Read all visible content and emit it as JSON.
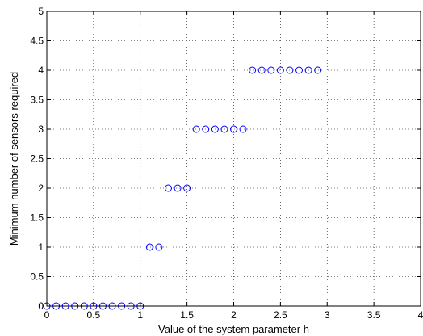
{
  "chart_data": {
    "type": "scatter",
    "title": "",
    "xlabel": "Value of the system parameter h",
    "ylabel": "Minimum number of sensors required",
    "xlim": [
      0,
      4
    ],
    "ylim": [
      0,
      5
    ],
    "x_ticks": [
      "0",
      "0.5",
      "1",
      "1.5",
      "2",
      "2.5",
      "3",
      "3.5",
      "4"
    ],
    "y_ticks": [
      "0",
      "0.5",
      "1",
      "1.5",
      "2",
      "2.5",
      "3",
      "3.5",
      "4",
      "4.5",
      "5"
    ],
    "grid": true,
    "grid_style": "dotted",
    "marker": "open-circle",
    "marker_color": "#0000ff",
    "series": [
      {
        "x": [
          0,
          0.1,
          0.2,
          0.3,
          0.4,
          0.5,
          0.6,
          0.7,
          0.8,
          0.9,
          1.0,
          1.1,
          1.2,
          1.3,
          1.4,
          1.5,
          1.6,
          1.7,
          1.8,
          1.9,
          2.0,
          2.1,
          2.2,
          2.3,
          2.4,
          2.5,
          2.6,
          2.7,
          2.8,
          2.9
        ],
        "y": [
          0,
          0,
          0,
          0,
          0,
          0,
          0,
          0,
          0,
          0,
          0,
          1,
          1,
          2,
          2,
          2,
          3,
          3,
          3,
          3,
          3,
          3,
          4,
          4,
          4,
          4,
          4,
          4,
          4,
          4
        ]
      }
    ]
  }
}
